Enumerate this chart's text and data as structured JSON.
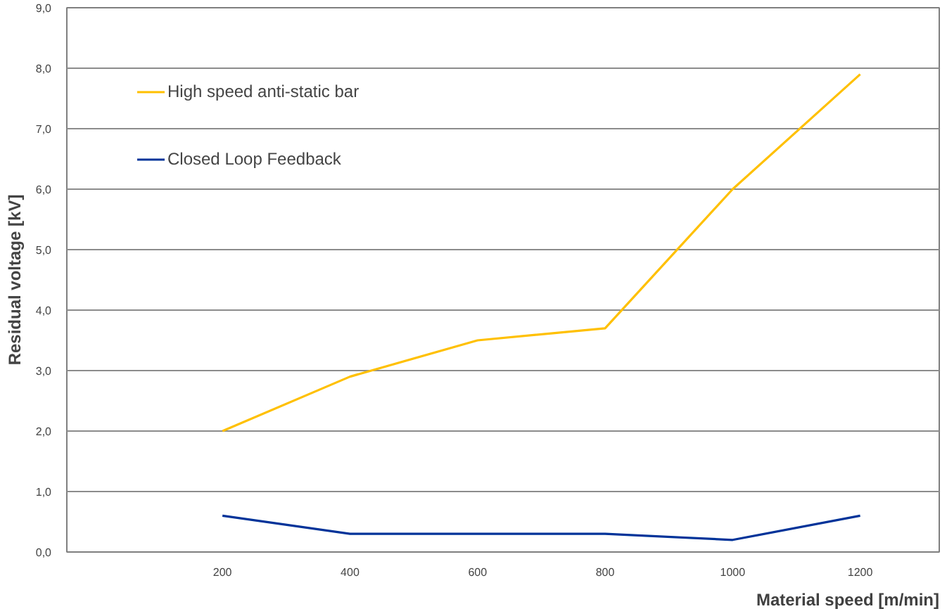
{
  "chart_data": {
    "type": "line",
    "xlabel": "Material speed [m/min]",
    "ylabel": "Residual voltage [kV]",
    "categories": [
      "200",
      "400",
      "600",
      "800",
      "1000",
      "1200"
    ],
    "series": [
      {
        "name": "High speed anti-static bar",
        "color": "#ffc000",
        "values": [
          2.0,
          2.9,
          3.5,
          3.7,
          6.0,
          7.9
        ]
      },
      {
        "name": "Closed Loop Feedback",
        "color": "#003399",
        "values": [
          0.6,
          0.3,
          0.3,
          0.3,
          0.2,
          0.6
        ]
      }
    ],
    "ylim": [
      0,
      9
    ],
    "yticks": [
      {
        "value": 0,
        "label": "0,0"
      },
      {
        "value": 1,
        "label": "1,0"
      },
      {
        "value": 2,
        "label": "2,0"
      },
      {
        "value": 3,
        "label": "3,0"
      },
      {
        "value": 4,
        "label": "4,0"
      },
      {
        "value": 5,
        "label": "5,0"
      },
      {
        "value": 6,
        "label": "6,0"
      },
      {
        "value": 7,
        "label": "7,0"
      },
      {
        "value": 8,
        "label": "8,0"
      },
      {
        "value": 9,
        "label": "9,0"
      }
    ],
    "grid": "y",
    "legend": "top left",
    "marker": "none",
    "line_style": "solid"
  }
}
